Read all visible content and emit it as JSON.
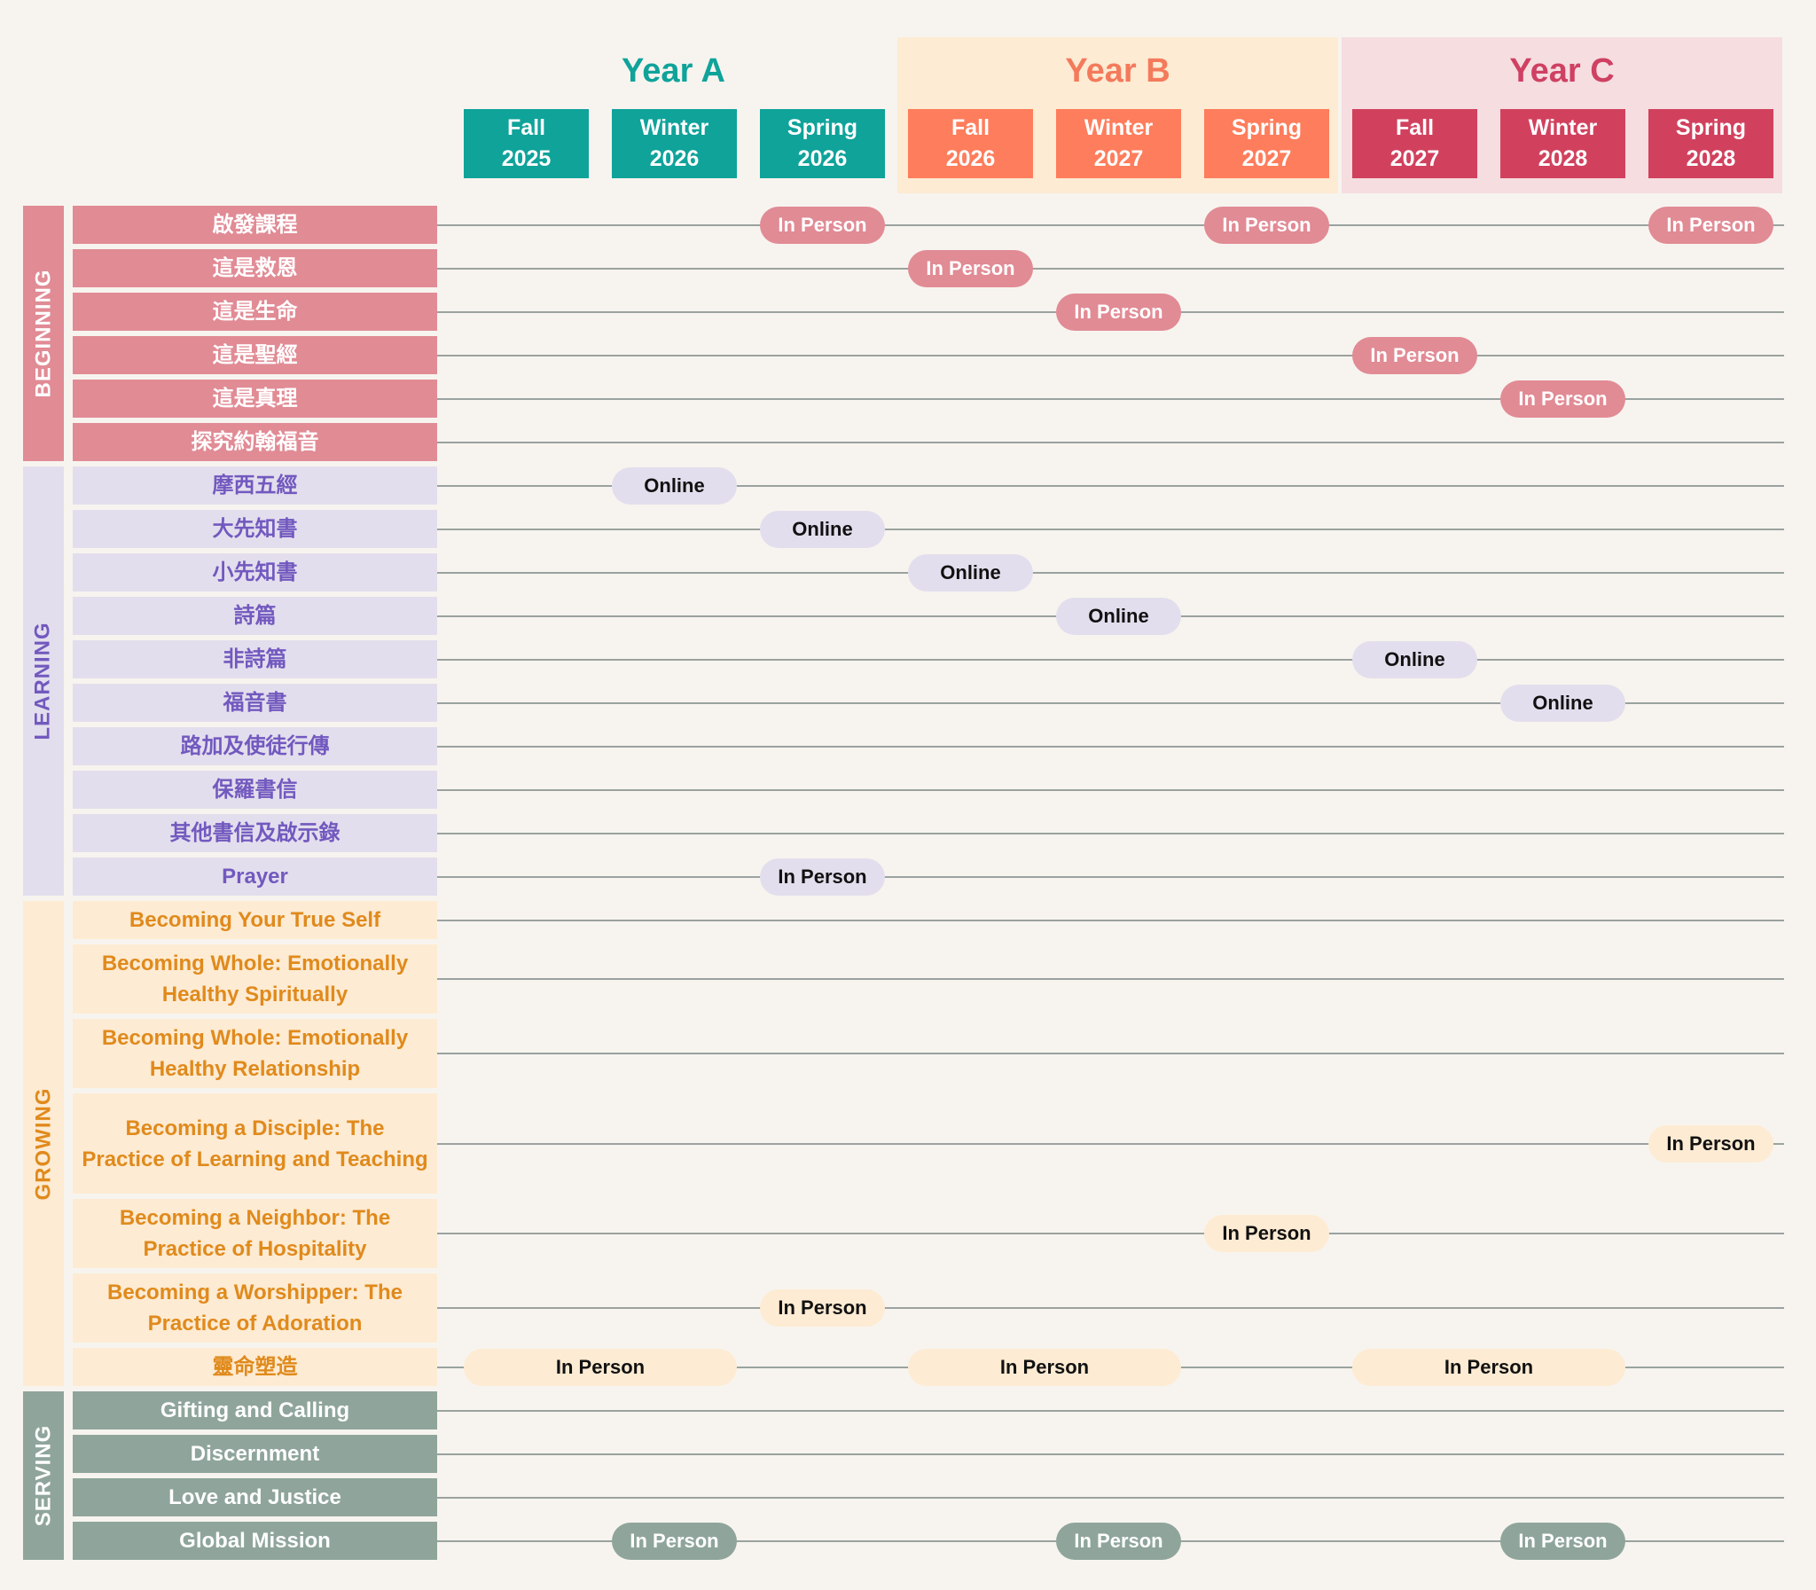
{
  "years": [
    {
      "label": "Year A",
      "color": "#0fa39a",
      "bg": "",
      "terms": [
        "Fall\n2025",
        "Winter\n2026",
        "Spring\n2026"
      ],
      "term_color": "#0fa39a"
    },
    {
      "label": "Year B",
      "color": "#f47a5c",
      "bg": "#fdebd3",
      "terms": [
        "Fall\n2026",
        "Winter\n2027",
        "Spring\n2027"
      ],
      "term_color": "#fe7d5c"
    },
    {
      "label": "Year C",
      "color": "#cf4062",
      "bg": "#f5dde0",
      "terms": [
        "Fall\n2027",
        "Winter\n2028",
        "Spring\n2028"
      ],
      "term_color": "#d1415e"
    }
  ],
  "categories": [
    {
      "label": "BEGINNING",
      "bar_color": "#e18b95",
      "text_color": "#ffffff",
      "row_color": "#e18b95",
      "row_text": "#ffffff",
      "pill_color": "#e18b95",
      "pill_text": "#ffffff",
      "courses": [
        {
          "label": "啟發課程",
          "pills": [
            {
              "text": "In Person",
              "slot": 2
            },
            {
              "text": "In Person",
              "slot": 5
            },
            {
              "text": "In Person",
              "slot": 8
            }
          ]
        },
        {
          "label": "這是救恩",
          "pills": [
            {
              "text": "In Person",
              "slot": 3
            }
          ]
        },
        {
          "label": "這是生命",
          "pills": [
            {
              "text": "In Person",
              "slot": 4
            }
          ]
        },
        {
          "label": "這是聖經",
          "pills": [
            {
              "text": "In Person",
              "slot": 6
            }
          ]
        },
        {
          "label": "這是真理",
          "pills": [
            {
              "text": "In Person",
              "slot": 7
            }
          ]
        },
        {
          "label": "探究約翰福音",
          "pills": []
        }
      ]
    },
    {
      "label": "LEARNING",
      "bar_color": "#e3deed",
      "text_color": "#7259bf",
      "row_color": "#e3deed",
      "row_text": "#7259bf",
      "pill_color": "#e3deed",
      "pill_text": "#111111",
      "courses": [
        {
          "label": "摩西五經",
          "pills": [
            {
              "text": "Online",
              "slot": 1
            }
          ]
        },
        {
          "label": "大先知書",
          "pills": [
            {
              "text": "Online",
              "slot": 2
            }
          ]
        },
        {
          "label": "小先知書",
          "pills": [
            {
              "text": "Online",
              "slot": 3
            }
          ]
        },
        {
          "label": "詩篇",
          "pills": [
            {
              "text": "Online",
              "slot": 4
            }
          ]
        },
        {
          "label": "非詩篇",
          "pills": [
            {
              "text": "Online",
              "slot": 6
            }
          ]
        },
        {
          "label": "福音書",
          "pills": [
            {
              "text": "Online",
              "slot": 7
            }
          ]
        },
        {
          "label": "路加及使徒行傳",
          "pills": []
        },
        {
          "label": "保羅書信",
          "pills": []
        },
        {
          "label": "其他書信及啟示錄",
          "pills": []
        },
        {
          "label": "Prayer",
          "pills": [
            {
              "text": "In Person",
              "slot": 2
            }
          ]
        }
      ]
    },
    {
      "label": "GROWING",
      "bar_color": "#fdebd3",
      "text_color": "#e08a1c",
      "row_color": "#fdebd3",
      "row_text": "#e08a1c",
      "pill_color": "#fdebd3",
      "pill_text": "#111111",
      "courses": [
        {
          "label": "Becoming Your True Self",
          "pills": []
        },
        {
          "label": "Becoming Whole: Emotionally Healthy Spiritually",
          "pills": []
        },
        {
          "label": "Becoming Whole: Emotionally Healthy Relationship",
          "pills": []
        },
        {
          "label": "Becoming a Disciple: The Practice of Learning and Teaching",
          "pills": [
            {
              "text": "In Person",
              "slot": 8
            }
          ]
        },
        {
          "label": "Becoming a Neighbor: The Practice of Hospitality",
          "pills": [
            {
              "text": "In Person",
              "slot": 5
            }
          ]
        },
        {
          "label": "Becoming a Worshipper: The Practice of Adoration",
          "pills": [
            {
              "text": "In Person",
              "slot": 2
            }
          ]
        },
        {
          "label": "靈命塑造",
          "pills": [
            {
              "text": "In Person",
              "slot": 0,
              "span": 2
            },
            {
              "text": "In Person",
              "slot": 3,
              "span": 2
            },
            {
              "text": "In Person",
              "slot": 6,
              "span": 2
            }
          ]
        }
      ]
    },
    {
      "label": "SERVING",
      "bar_color": "#8fa59b",
      "text_color": "#ffffff",
      "row_color": "#8fa59b",
      "row_text": "#ffffff",
      "pill_color": "#8fa59b",
      "pill_text": "#ffffff",
      "courses": [
        {
          "label": "Gifting and Calling",
          "pills": []
        },
        {
          "label": "Discernment",
          "pills": []
        },
        {
          "label": "Love and Justice",
          "pills": []
        },
        {
          "label": "Global Mission",
          "pills": [
            {
              "text": "In Person",
              "slot": 1
            },
            {
              "text": "In Person",
              "slot": 4
            },
            {
              "text": "In Person",
              "slot": 7
            }
          ]
        }
      ]
    }
  ]
}
